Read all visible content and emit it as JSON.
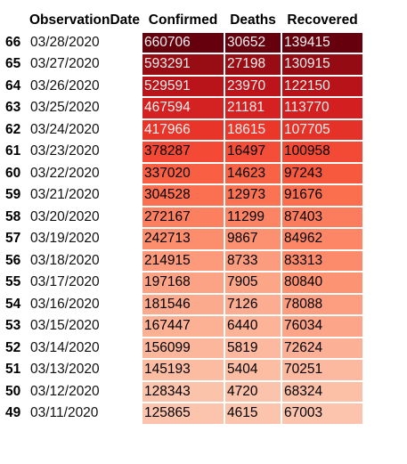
{
  "chart_data": {
    "type": "table",
    "columns": [
      "ObservationDate",
      "Confirmed",
      "Deaths",
      "Recovered"
    ],
    "rows": [
      {
        "index": "66",
        "ObservationDate": "03/28/2020",
        "Confirmed": 660706,
        "Deaths": 30652,
        "Recovered": 139415
      },
      {
        "index": "65",
        "ObservationDate": "03/27/2020",
        "Confirmed": 593291,
        "Deaths": 27198,
        "Recovered": 130915
      },
      {
        "index": "64",
        "ObservationDate": "03/26/2020",
        "Confirmed": 529591,
        "Deaths": 23970,
        "Recovered": 122150
      },
      {
        "index": "63",
        "ObservationDate": "03/25/2020",
        "Confirmed": 467594,
        "Deaths": 21181,
        "Recovered": 113770
      },
      {
        "index": "62",
        "ObservationDate": "03/24/2020",
        "Confirmed": 417966,
        "Deaths": 18615,
        "Recovered": 107705
      },
      {
        "index": "61",
        "ObservationDate": "03/23/2020",
        "Confirmed": 378287,
        "Deaths": 16497,
        "Recovered": 100958
      },
      {
        "index": "60",
        "ObservationDate": "03/22/2020",
        "Confirmed": 337020,
        "Deaths": 14623,
        "Recovered": 97243
      },
      {
        "index": "59",
        "ObservationDate": "03/21/2020",
        "Confirmed": 304528,
        "Deaths": 12973,
        "Recovered": 91676
      },
      {
        "index": "58",
        "ObservationDate": "03/20/2020",
        "Confirmed": 272167,
        "Deaths": 11299,
        "Recovered": 87403
      },
      {
        "index": "57",
        "ObservationDate": "03/19/2020",
        "Confirmed": 242713,
        "Deaths": 9867,
        "Recovered": 84962
      },
      {
        "index": "56",
        "ObservationDate": "03/18/2020",
        "Confirmed": 214915,
        "Deaths": 8733,
        "Recovered": 83313
      },
      {
        "index": "55",
        "ObservationDate": "03/17/2020",
        "Confirmed": 197168,
        "Deaths": 7905,
        "Recovered": 80840
      },
      {
        "index": "54",
        "ObservationDate": "03/16/2020",
        "Confirmed": 181546,
        "Deaths": 7126,
        "Recovered": 78088
      },
      {
        "index": "53",
        "ObservationDate": "03/15/2020",
        "Confirmed": 167447,
        "Deaths": 6440,
        "Recovered": 76034
      },
      {
        "index": "52",
        "ObservationDate": "03/14/2020",
        "Confirmed": 156099,
        "Deaths": 5819,
        "Recovered": 72624
      },
      {
        "index": "51",
        "ObservationDate": "03/13/2020",
        "Confirmed": 145193,
        "Deaths": 5404,
        "Recovered": 70251
      },
      {
        "index": "50",
        "ObservationDate": "03/12/2020",
        "Confirmed": 128343,
        "Deaths": 4720,
        "Recovered": 68324
      },
      {
        "index": "49",
        "ObservationDate": "03/11/2020",
        "Confirmed": 125865,
        "Deaths": 4615,
        "Recovered": 67003
      }
    ],
    "gradient_columns": [
      "Confirmed",
      "Deaths",
      "Recovered"
    ],
    "colormap": {
      "name": "Reds",
      "stops": [
        "#fff5f0",
        "#fee0d2",
        "#fcbba1",
        "#fc9272",
        "#fb6a4a",
        "#ef3b2c",
        "#cb181d",
        "#a50f15",
        "#67000d"
      ]
    },
    "text_colors": {
      "on_light": "#000000",
      "on_dark": "#f1f1f1"
    }
  }
}
